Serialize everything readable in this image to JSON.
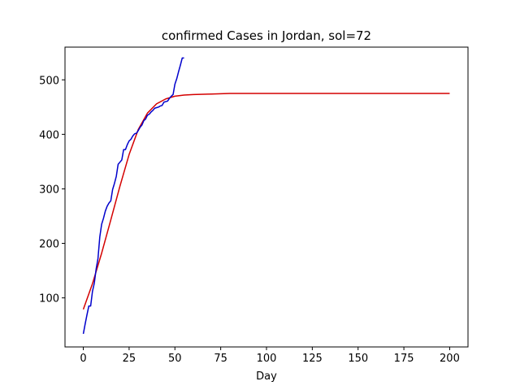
{
  "chart_data": {
    "type": "line",
    "title": "confirmed Cases in Jordan, sol=72",
    "xlabel": "Day",
    "ylabel": "",
    "xlim": [
      -10,
      210
    ],
    "ylim": [
      10,
      560
    ],
    "xticks": [
      0,
      25,
      50,
      75,
      100,
      125,
      150,
      175,
      200
    ],
    "yticks": [
      100,
      200,
      300,
      400,
      500
    ],
    "grid": false,
    "legend": "none",
    "series": [
      {
        "color": "#d40000",
        "x": [
          0,
          5,
          10,
          15,
          20,
          25,
          30,
          35,
          40,
          45,
          50,
          55,
          60,
          70,
          80,
          100,
          125,
          150,
          175,
          200
        ],
        "y": [
          79,
          126,
          182,
          243,
          305,
          363,
          409,
          439,
          456,
          465,
          470,
          472,
          473,
          474,
          475,
          475,
          475,
          475,
          475,
          475
        ]
      },
      {
        "color": "#0000cc",
        "x": [
          0,
          1,
          2,
          3,
          4,
          5,
          6,
          7,
          8,
          9,
          10,
          11,
          12,
          13,
          14,
          15,
          16,
          17,
          18,
          19,
          20,
          21,
          22,
          23,
          24,
          25,
          26,
          27,
          28,
          29,
          30,
          31,
          32,
          33,
          34,
          35,
          36,
          37,
          38,
          39,
          40,
          41,
          42,
          43,
          44,
          45,
          46,
          47,
          48,
          49,
          50,
          51,
          52,
          53,
          54,
          55
        ],
        "y": [
          34,
          52,
          69,
          85,
          85,
          112,
          127,
          153,
          172,
          212,
          235,
          246,
          259,
          268,
          274,
          278,
          299,
          310,
          323,
          345,
          349,
          353,
          372,
          372,
          381,
          388,
          391,
          397,
          401,
          402,
          407,
          413,
          417,
          425,
          428,
          435,
          437,
          441,
          444,
          448,
          449,
          450,
          452,
          453,
          459,
          460,
          461,
          466,
          470,
          473,
          492,
          502,
          515,
          527,
          540,
          540
        ]
      }
    ]
  }
}
